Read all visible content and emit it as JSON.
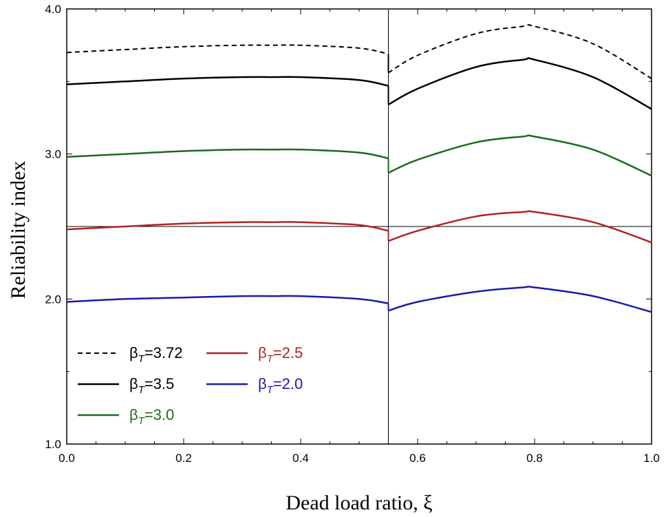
{
  "chart_data": {
    "type": "line",
    "xlabel": "Dead load ratio, ξ",
    "ylabel": "Reliability index",
    "xlim": [
      0.0,
      1.0
    ],
    "ylim": [
      1.0,
      4.0
    ],
    "xticks": [
      "0.0",
      "0.2",
      "0.4",
      "0.6",
      "0.8",
      "1.0"
    ],
    "xtick_values": [
      0.0,
      0.2,
      0.4,
      0.6,
      0.8,
      1.0
    ],
    "yticks": [
      "1.0",
      "2.0",
      "3.0",
      "4.0"
    ],
    "ytick_values": [
      1.0,
      2.0,
      3.0,
      4.0
    ],
    "grid": false,
    "reference_lines": {
      "vertical_x": 0.55,
      "horizontal_y": 2.5
    },
    "legend_position": "bottom-left",
    "series": [
      {
        "name": "3.72",
        "color": "#000000",
        "style": "dashed",
        "segments": [
          {
            "x": [
              0.0,
              0.1,
              0.2,
              0.3,
              0.35,
              0.4,
              0.5,
              0.55
            ],
            "y": [
              3.7,
              3.72,
              3.74,
              3.75,
              3.75,
              3.75,
              3.73,
              3.69
            ]
          },
          {
            "x": [
              0.55,
              0.6,
              0.7,
              0.78,
              0.8,
              0.9,
              1.0
            ],
            "y": [
              3.56,
              3.68,
              3.83,
              3.88,
              3.88,
              3.76,
              3.52
            ]
          }
        ]
      },
      {
        "name": "3.5",
        "color": "#000000",
        "style": "solid",
        "segments": [
          {
            "x": [
              0.0,
              0.1,
              0.2,
              0.3,
              0.35,
              0.4,
              0.5,
              0.55
            ],
            "y": [
              3.48,
              3.5,
              3.52,
              3.53,
              3.53,
              3.53,
              3.51,
              3.47
            ]
          },
          {
            "x": [
              0.55,
              0.6,
              0.7,
              0.78,
              0.8,
              0.9,
              1.0
            ],
            "y": [
              3.34,
              3.45,
              3.6,
              3.65,
              3.65,
              3.53,
              3.31
            ]
          }
        ]
      },
      {
        "name": "3.0",
        "color": "#1a6b1a",
        "style": "solid",
        "segments": [
          {
            "x": [
              0.0,
              0.1,
              0.2,
              0.3,
              0.35,
              0.4,
              0.5,
              0.55
            ],
            "y": [
              2.98,
              3.0,
              3.02,
              3.03,
              3.03,
              3.03,
              3.01,
              2.97
            ]
          },
          {
            "x": [
              0.55,
              0.6,
              0.7,
              0.78,
              0.8,
              0.9,
              1.0
            ],
            "y": [
              2.87,
              2.96,
              3.08,
              3.12,
              3.12,
              3.03,
              2.85
            ]
          }
        ]
      },
      {
        "name": "2.5",
        "color": "#b22222",
        "style": "solid",
        "segments": [
          {
            "x": [
              0.0,
              0.1,
              0.2,
              0.3,
              0.35,
              0.4,
              0.5,
              0.55
            ],
            "y": [
              2.48,
              2.5,
              2.52,
              2.53,
              2.53,
              2.53,
              2.51,
              2.47
            ]
          },
          {
            "x": [
              0.55,
              0.6,
              0.7,
              0.78,
              0.8,
              0.9,
              1.0
            ],
            "y": [
              2.4,
              2.47,
              2.57,
              2.6,
              2.6,
              2.53,
              2.39
            ]
          }
        ]
      },
      {
        "name": "2.0",
        "color": "#1a1aaa",
        "style": "solid",
        "segments": [
          {
            "x": [
              0.0,
              0.1,
              0.2,
              0.3,
              0.35,
              0.4,
              0.5,
              0.55
            ],
            "y": [
              1.98,
              2.0,
              2.01,
              2.02,
              2.02,
              2.02,
              2.0,
              1.97
            ]
          },
          {
            "x": [
              0.55,
              0.6,
              0.7,
              0.78,
              0.8,
              0.9,
              1.0
            ],
            "y": [
              1.92,
              1.98,
              2.05,
              2.08,
              2.08,
              2.02,
              1.91
            ]
          }
        ]
      }
    ],
    "legend": [
      {
        "series": "3.72",
        "label_prefix": "β",
        "label_sub": "T",
        "label_value": "=3.72"
      },
      {
        "series": "2.5",
        "label_prefix": "β",
        "label_sub": "T",
        "label_value": "=2.5"
      },
      {
        "series": "3.5",
        "label_prefix": "β",
        "label_sub": "T",
        "label_value": "=3.5"
      },
      {
        "series": "2.0",
        "label_prefix": "β",
        "label_sub": "T",
        "label_value": "=2.0"
      },
      {
        "series": "3.0",
        "label_prefix": "β",
        "label_sub": "T",
        "label_value": "=3.0"
      }
    ]
  }
}
